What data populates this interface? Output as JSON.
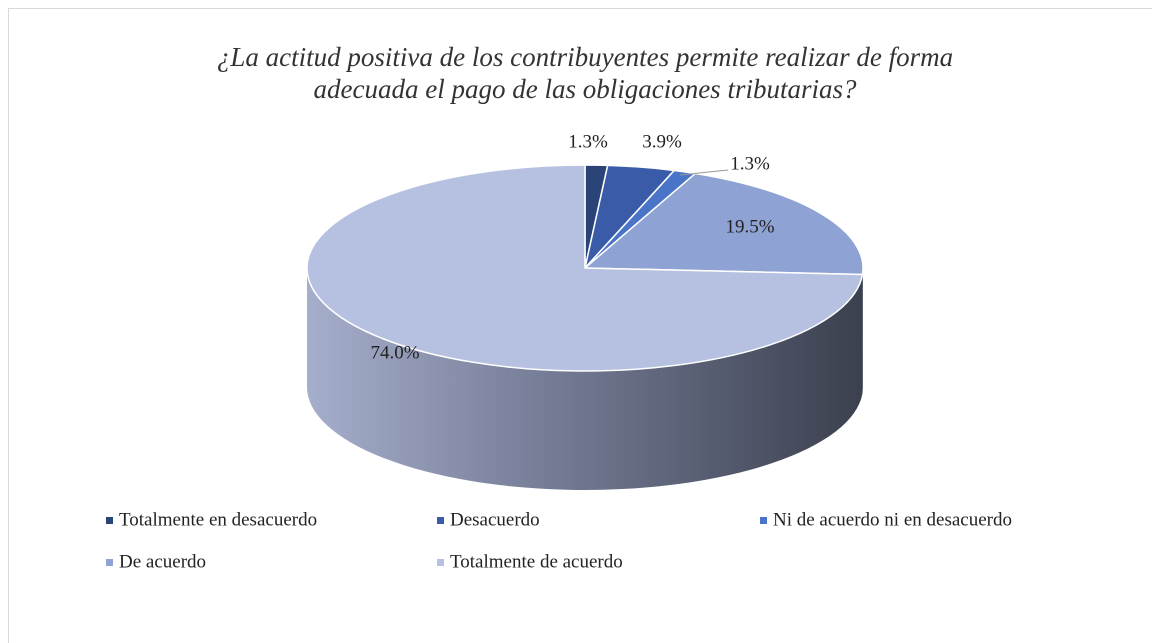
{
  "chart_data": {
    "type": "pie",
    "title": [
      "¿La actitud positiva de los contribuyentes permite realizar de forma",
      "adecuada el pago de las obligaciones tributarias?"
    ],
    "categories": [
      "Totalmente en desacuerdo",
      "Desacuerdo",
      "Ni de acuerdo ni en desacuerdo",
      "De acuerdo",
      "Totalmente de acuerdo"
    ],
    "values": [
      1.3,
      3.9,
      1.3,
      19.5,
      74
    ],
    "value_labels": [
      "1.3%",
      "3.9%",
      "1.3%",
      "19.5%",
      "74.0%"
    ],
    "colors": [
      "#2a4478",
      "#3a5ca8",
      "#4a74c8",
      "#8fa2d4",
      "#b6c1e1"
    ],
    "legend": "bottom"
  }
}
